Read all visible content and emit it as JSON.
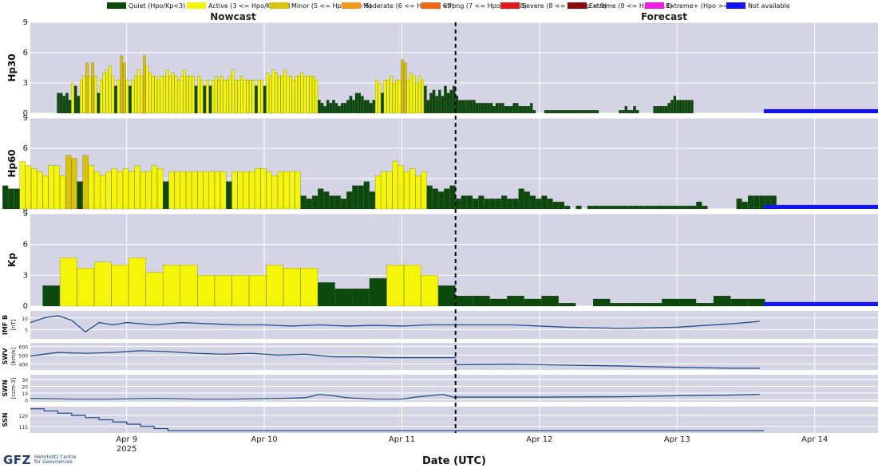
{
  "legend": [
    {
      "label": "Quiet (Hpo/Kp<3)",
      "color": "#0b4a0b"
    },
    {
      "label": "Active (3 <= Hpo/Kp < 5)",
      "color": "#f5f50a"
    },
    {
      "label": "Minor (5 <= Hpo/Kp < 6)",
      "color": "#d8c20a"
    },
    {
      "label": "Moderate (6 <= Hpo/Kp <7)",
      "color": "#f39a1a"
    },
    {
      "label": "Strong (7 <= Hpo/Kp < 8)",
      "color": "#f06414"
    },
    {
      "label": "Severe (8 <= Hpo/Kp < 9)",
      "color": "#e01818"
    },
    {
      "label": "Extreme (9 <= Hpo < 10)",
      "color": "#8b0a0a"
    },
    {
      "label": "Extreme+ (Hpo >= 10)",
      "color": "#f01ce6"
    },
    {
      "label": "Not available",
      "color": "#1414f0"
    }
  ],
  "section_labels": {
    "nowcast": "Nowcast",
    "forecast": "Forecast"
  },
  "x_axis": {
    "title": "Date (UTC)",
    "ticks": [
      "Apr 9",
      "Apr 10",
      "Apr 11",
      "Apr 12",
      "Apr 13",
      "Apr 14"
    ],
    "year_label": "2025"
  },
  "logo": {
    "mark": "GFZ",
    "line1": "Helmholtz Centre",
    "line2": "for Geosciences"
  },
  "chart_data": [
    {
      "type": "bar",
      "panel": "Hp30",
      "ylabel": "Hp30",
      "yticks": [
        0,
        3,
        6,
        9
      ],
      "ylim": [
        0,
        9
      ],
      "x_range_days": [
        8.3,
        14.46
      ],
      "nowcast_end_day": 11.39,
      "bar_width_hours": 0.5,
      "values": [
        2,
        2,
        1.7,
        2,
        1.3,
        3,
        2.7,
        1.7,
        3.3,
        3.7,
        5,
        3.7,
        5,
        3.7,
        2,
        3.3,
        4,
        4.3,
        4.7,
        3.7,
        2.7,
        3.3,
        5.7,
        5,
        3.3,
        2.7,
        3.3,
        3.7,
        4.3,
        3.7,
        5.7,
        4.7,
        4,
        3.7,
        3.7,
        3.3,
        3.7,
        3.7,
        4.3,
        3.7,
        4,
        3.7,
        3.3,
        3.7,
        4.3,
        3.7,
        3.7,
        3.7,
        2.7,
        3.7,
        3.3,
        2.7,
        3.3,
        2.7,
        3.3,
        3.7,
        3.3,
        3.7,
        3.3,
        3.3,
        3.7,
        4.3,
        3.3,
        3.3,
        3.7,
        3.3,
        3.3,
        3.3,
        3.3,
        2.7,
        3.3,
        3.3,
        2.7,
        4,
        3.7,
        4.3,
        4,
        3.7,
        3.7,
        4.3,
        3.7,
        3.7,
        3.3,
        3.7,
        3.7,
        4,
        3.7,
        3.7,
        3.7,
        3.7,
        3.3,
        1.3,
        1,
        0.7,
        1.3,
        1,
        1.3,
        1,
        0.7,
        1,
        1,
        1.3,
        1.7,
        1.3,
        2,
        2,
        1.7,
        1.3,
        1.3,
        1,
        1.3,
        3.3,
        3,
        2,
        3.3,
        3.3,
        3.7,
        3,
        3.3,
        3.3,
        5.3,
        5,
        3.3,
        4,
        3.7,
        3,
        3.7,
        3.3,
        2.7,
        1.3,
        2,
        2.3,
        1.7,
        2.3,
        1.7,
        2.7,
        2,
        2.3,
        2.7
      ],
      "forecast_values": [
        1.7,
        1.3,
        1.3,
        1.3,
        1.3,
        1.3,
        1.3,
        1,
        1,
        1,
        1,
        1,
        1,
        0.7,
        1,
        1,
        1,
        0.7,
        0.7,
        0.7,
        1,
        1,
        0.7,
        0.7,
        0.7,
        0.7,
        1,
        0.3,
        0,
        0,
        0,
        0.3,
        0.3,
        0.3,
        0.3,
        0.3,
        0.3,
        0.3,
        0.3,
        0.3,
        0.3,
        0.3,
        0.3,
        0.3,
        0.3,
        0.3,
        0.3,
        0.3,
        0.3,
        0.3,
        0,
        0,
        0,
        0,
        0,
        0,
        0,
        0.3,
        0.3,
        0.7,
        0.3,
        0.3,
        0.7,
        0.3,
        0,
        0,
        0,
        0,
        0,
        0.7,
        0.7,
        0.7,
        0.7,
        0.7,
        1,
        1.3,
        1.7,
        1.3,
        1.3,
        1.3,
        1.3,
        1.3,
        1.3
      ],
      "not_available_from_day": 13.63
    },
    {
      "type": "bar",
      "panel": "Hp60",
      "ylabel": "Hp60",
      "yticks": [
        0,
        3,
        6,
        9
      ],
      "ylim": [
        0,
        9
      ],
      "x_range_days": [
        8.3,
        14.46
      ],
      "nowcast_end_day": 11.39,
      "bar_width_hours": 1,
      "values": [
        2.3,
        2,
        2,
        4.7,
        4.3,
        4,
        3.7,
        3.3,
        4.3,
        4.3,
        3.3,
        5.3,
        5,
        2.7,
        5.3,
        4.3,
        3.7,
        3.3,
        3.7,
        4,
        3.7,
        4,
        3.7,
        4.3,
        3.7,
        3.7,
        4.3,
        4,
        2.7,
        3.7,
        3.7,
        3.7,
        3.7,
        3.7,
        3.7,
        3.7,
        3.7,
        3.7,
        3.7,
        2.7,
        3.7,
        3.7,
        3.7,
        3.7,
        4,
        4,
        3.7,
        3.3,
        3.7,
        3.7,
        3.7,
        3.7,
        1.3,
        1,
        1.3,
        2,
        1.7,
        1.3,
        1.3,
        1,
        1.7,
        2.3,
        2.3,
        2.7,
        1.7,
        3.3,
        3.7,
        3.7,
        4.7,
        4.3,
        3.7,
        4,
        3.3,
        3.7,
        2.3,
        2,
        1.7,
        2,
        2.3
      ],
      "forecast_values": [
        1,
        1.3,
        1.3,
        1,
        1.3,
        1,
        1,
        1,
        1.3,
        1,
        1,
        2,
        1.7,
        1.3,
        1,
        1.3,
        1,
        0.7,
        0.7,
        0.3,
        0,
        0.3,
        0,
        0.3,
        0.3,
        0.3,
        0.3,
        0.3,
        0.3,
        0.3,
        0.3,
        0.3,
        0.3,
        0.3,
        0.3,
        0.3,
        0.3,
        0.3,
        0.3,
        0.3,
        0.3,
        0.3,
        0.7,
        0.3,
        0,
        0,
        0,
        0,
        0,
        1,
        0.7,
        1.3,
        1.3,
        1.3,
        1.3,
        1.3
      ],
      "not_available_from_day": 13.63
    },
    {
      "type": "bar",
      "panel": "Kp",
      "ylabel": "Kp",
      "yticks": [
        0,
        3,
        6,
        9
      ],
      "ylim": [
        0,
        9
      ],
      "x_range_days": [
        8.3,
        14.46
      ],
      "nowcast_end_day": 11.39,
      "bar_width_hours": 3,
      "values": [
        2,
        4.7,
        3.7,
        4.3,
        4,
        4.7,
        3.3,
        4,
        4,
        3,
        3,
        3,
        3,
        4,
        3.7,
        3.7,
        2.3,
        1.7,
        1.7,
        2.7,
        4,
        4,
        3,
        2
      ],
      "forecast_values": [
        1,
        1,
        0.7,
        1,
        0.7,
        1,
        0.3,
        0,
        0.7,
        0.3,
        0.3,
        0.3,
        0.7,
        0.7,
        0.3,
        1,
        0.7,
        0.7
      ],
      "not_available_from_day": 13.63
    },
    {
      "type": "line",
      "panel": "IMF B",
      "ylabel": "IMF B",
      "yunit": "[nT]",
      "yticks": [
        5,
        10
      ],
      "ylim": [
        1,
        13
      ],
      "nowcast": {
        "x": [
          8.3,
          8.4,
          8.5,
          8.6,
          8.7,
          8.8,
          8.9,
          9.0,
          9.2,
          9.4,
          9.6,
          9.8,
          10.0,
          10.2,
          10.4,
          10.6,
          10.8,
          11.0,
          11.2,
          11.39
        ],
        "y": [
          8,
          10,
          11,
          9,
          4,
          8,
          7,
          8,
          7,
          8,
          7.5,
          7,
          7,
          6.5,
          7,
          6.5,
          6.8,
          6.5,
          7,
          7
        ]
      },
      "forecast": {
        "x": [
          11.39,
          11.8,
          12.2,
          12.6,
          13.0,
          13.4,
          13.6
        ],
        "y": [
          7,
          7,
          6,
          5.5,
          6,
          7.5,
          8.5
        ]
      }
    },
    {
      "type": "line",
      "panel": "SWV",
      "ylabel": "SWV",
      "yunit": "[km/s]",
      "yticks": [
        400,
        500,
        600
      ],
      "ylim": [
        330,
        640
      ],
      "nowcast": {
        "x": [
          8.3,
          8.5,
          8.7,
          8.9,
          9.1,
          9.3,
          9.5,
          9.7,
          9.9,
          10.1,
          10.3,
          10.5,
          10.7,
          10.9,
          11.1,
          11.3,
          11.39
        ],
        "y": [
          490,
          530,
          520,
          530,
          550,
          540,
          520,
          510,
          520,
          500,
          510,
          480,
          480,
          470,
          470,
          470,
          470
        ]
      },
      "forecast": {
        "x": [
          11.39,
          11.8,
          12.2,
          12.6,
          13.0,
          13.4,
          13.6
        ],
        "y": [
          390,
          395,
          385,
          375,
          360,
          350,
          350
        ]
      }
    },
    {
      "type": "line",
      "panel": "SWN",
      "ylabel": "SWN",
      "yunit": "[ccm-3]",
      "yticks": [
        0,
        10,
        20,
        30
      ],
      "ylim": [
        -3,
        37
      ],
      "nowcast": {
        "x": [
          8.3,
          8.6,
          8.9,
          9.2,
          9.5,
          9.8,
          10.1,
          10.3,
          10.4,
          10.5,
          10.6,
          10.8,
          11.0,
          11.1,
          11.2,
          11.3,
          11.39
        ],
        "y": [
          2,
          1,
          1,
          2,
          1,
          1,
          2,
          3,
          8,
          6,
          3,
          1,
          1,
          4,
          6,
          8,
          3
        ]
      },
      "forecast": {
        "x": [
          11.39,
          12.0,
          12.6,
          13.0,
          13.4,
          13.6
        ],
        "y": [
          4,
          4,
          4.5,
          6,
          7,
          8
        ]
      }
    },
    {
      "type": "line",
      "panel": "SSN",
      "ylabel": "SSN",
      "yticks": [
        115,
        120
      ],
      "ylim": [
        112,
        124
      ],
      "step_x": [
        8.3,
        8.4,
        8.5,
        8.6,
        8.7,
        8.8,
        8.9,
        9.0,
        9.1,
        9.2,
        9.3,
        9.4,
        11.39,
        13.63
      ],
      "step_y": [
        123,
        122,
        121,
        120,
        119,
        118,
        117,
        116,
        115,
        114,
        113,
        113,
        113,
        113
      ]
    }
  ]
}
